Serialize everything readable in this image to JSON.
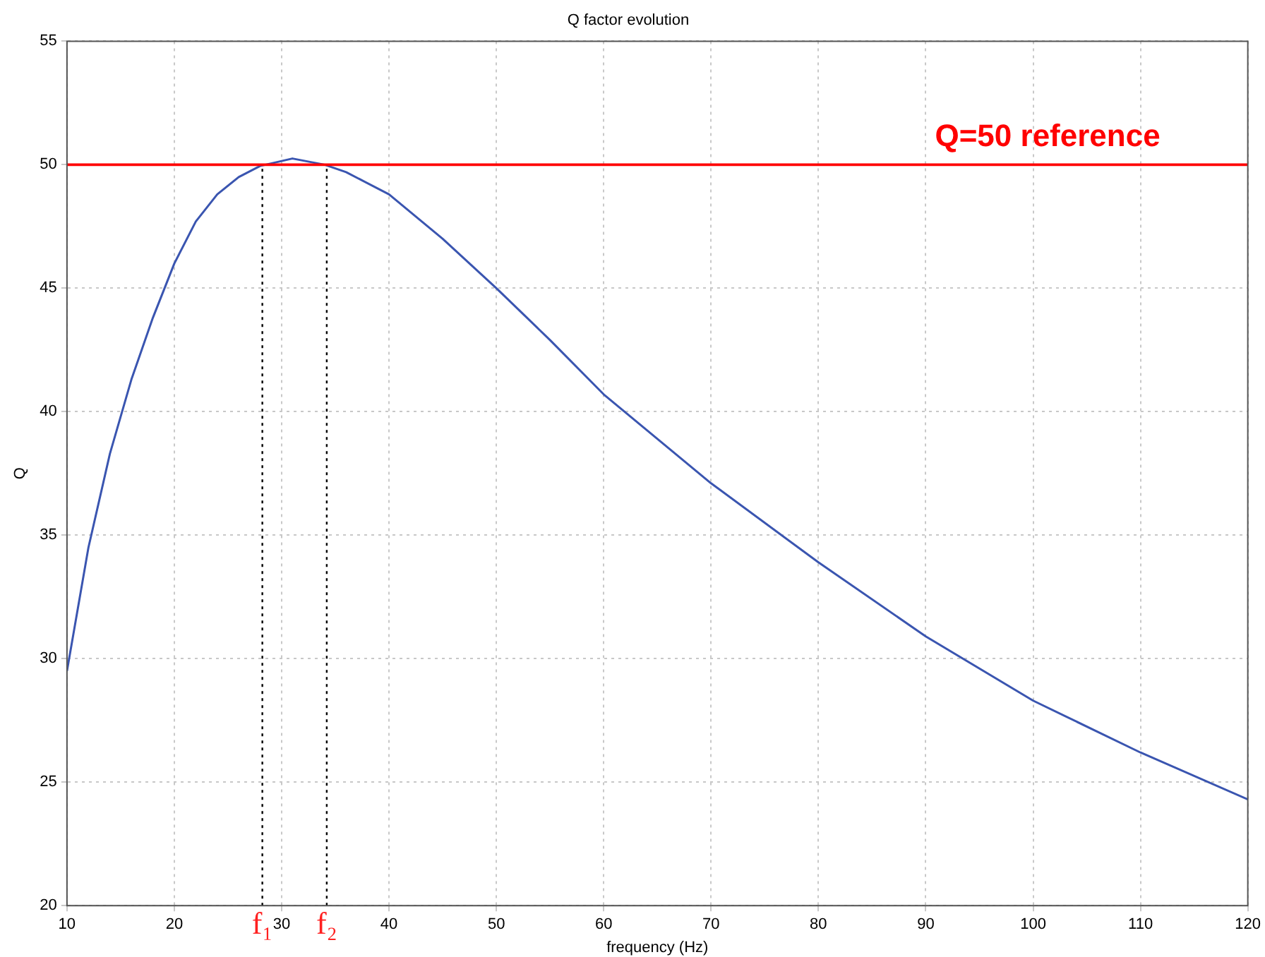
{
  "chart_data": {
    "type": "line",
    "title": "Q factor evolution",
    "xlabel": "frequency (Hz)",
    "ylabel": "Q",
    "xlim": [
      10,
      120
    ],
    "xticks": [
      10,
      20,
      30,
      40,
      50,
      60,
      70,
      80,
      90,
      100,
      110,
      120
    ],
    "ylim": [
      20,
      55
    ],
    "yticks": [
      20,
      25,
      30,
      35,
      40,
      45,
      50,
      55
    ],
    "grid": true,
    "marker": "none",
    "line_style": "solid",
    "series": [
      {
        "color": "#3a55b0",
        "x": [
          10,
          12,
          14,
          16,
          18,
          20,
          22,
          24,
          26,
          28,
          31,
          34,
          36,
          40,
          45,
          50,
          55,
          60,
          70,
          80,
          90,
          100,
          110,
          120
        ],
        "values": [
          29.5,
          34.5,
          38.3,
          41.3,
          43.8,
          46.0,
          47.7,
          48.8,
          49.5,
          49.95,
          50.25,
          50.0,
          49.7,
          48.8,
          47.0,
          45.0,
          42.9,
          40.7,
          37.1,
          33.9,
          30.9,
          28.3,
          26.2,
          24.3
        ]
      }
    ],
    "ref_lines": [
      {
        "axis": "y",
        "value": 50,
        "label": "Q=50 reference",
        "color": "#ff0000",
        "line_style": "solid"
      },
      {
        "axis": "x",
        "value": 28.2,
        "label": "f₁",
        "color": "#000000",
        "line_style": "dotted"
      },
      {
        "axis": "x",
        "value": 34.2,
        "label": "f₂",
        "color": "#000000",
        "line_style": "dotted"
      }
    ]
  }
}
